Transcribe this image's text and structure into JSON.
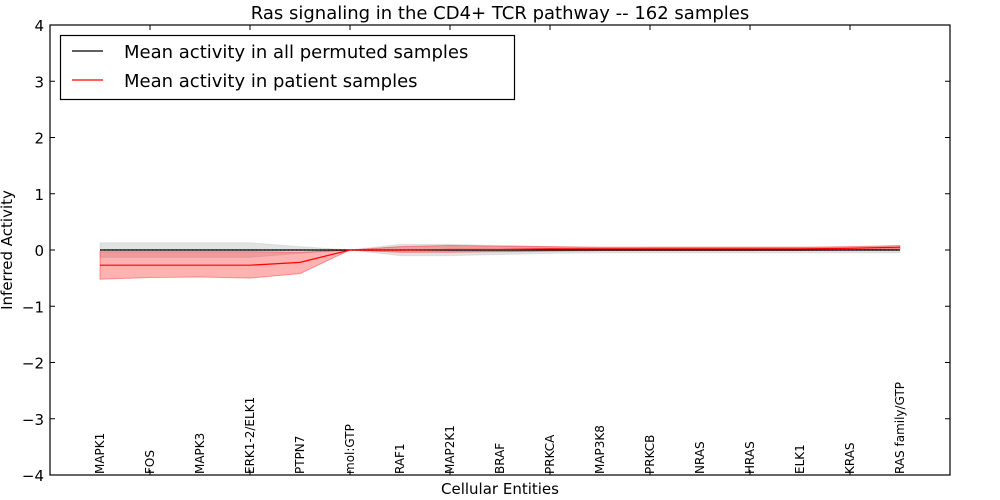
{
  "chart_data": {
    "type": "line",
    "title": "Ras signaling in the CD4+ TCR pathway -- 162 samples",
    "xlabel": "Cellular Entities",
    "ylabel": "Inferred Activity",
    "ylim": [
      -4,
      4
    ],
    "yticks": [
      -4,
      -3,
      -2,
      -1,
      0,
      1,
      2,
      3,
      4
    ],
    "ytick_labels": [
      "−4",
      "−3",
      "−2",
      "−1",
      "0",
      "1",
      "2",
      "3",
      "4"
    ],
    "grid": false,
    "legend_position": "top-left",
    "categories": [
      "MAPK1",
      "FOS",
      "MAPK3",
      "ERK1-2/ELK1",
      "PTPN7",
      "mol:GTP",
      "RAF1",
      "MAP2K1",
      "BRAF",
      "PRKCA",
      "MAP3K8",
      "PRKCB",
      "NRAS",
      "HRAS",
      "ELK1",
      "KRAS",
      "RAS family/GTP"
    ],
    "series": [
      {
        "name": "Mean activity in all permuted samples",
        "color": "#000000",
        "band_color": "#bbbbbb",
        "values": [
          0.0,
          0.0,
          0.0,
          0.0,
          0.0,
          0.0,
          0.0,
          0.0,
          0.0,
          0.0,
          0.0,
          0.0,
          0.0,
          0.0,
          0.0,
          0.0,
          0.0
        ],
        "upper": [
          0.13,
          0.13,
          0.13,
          0.13,
          0.06,
          0.0,
          0.1,
          0.1,
          0.08,
          0.06,
          0.05,
          0.05,
          0.05,
          0.05,
          0.05,
          0.05,
          0.05
        ],
        "lower": [
          -0.13,
          -0.13,
          -0.13,
          -0.13,
          -0.06,
          0.0,
          -0.1,
          -0.1,
          -0.08,
          -0.06,
          -0.05,
          -0.05,
          -0.05,
          -0.05,
          -0.05,
          -0.05,
          -0.05
        ]
      },
      {
        "name": "Mean activity in patient samples",
        "color": "#ff0000",
        "band_color": "#ff0000",
        "values": [
          -0.27,
          -0.27,
          -0.27,
          -0.27,
          -0.22,
          0.0,
          0.0,
          0.01,
          0.01,
          0.02,
          0.02,
          0.02,
          0.02,
          0.02,
          0.02,
          0.03,
          0.05
        ],
        "upper": [
          -0.03,
          -0.03,
          -0.03,
          -0.03,
          -0.04,
          0.0,
          0.06,
          0.08,
          0.07,
          0.06,
          0.05,
          0.05,
          0.05,
          0.05,
          0.05,
          0.06,
          0.08
        ],
        "lower": [
          -0.52,
          -0.49,
          -0.48,
          -0.5,
          -0.42,
          0.0,
          -0.04,
          -0.04,
          -0.03,
          -0.02,
          -0.01,
          -0.01,
          -0.01,
          -0.01,
          -0.01,
          0.0,
          0.02
        ]
      }
    ]
  }
}
